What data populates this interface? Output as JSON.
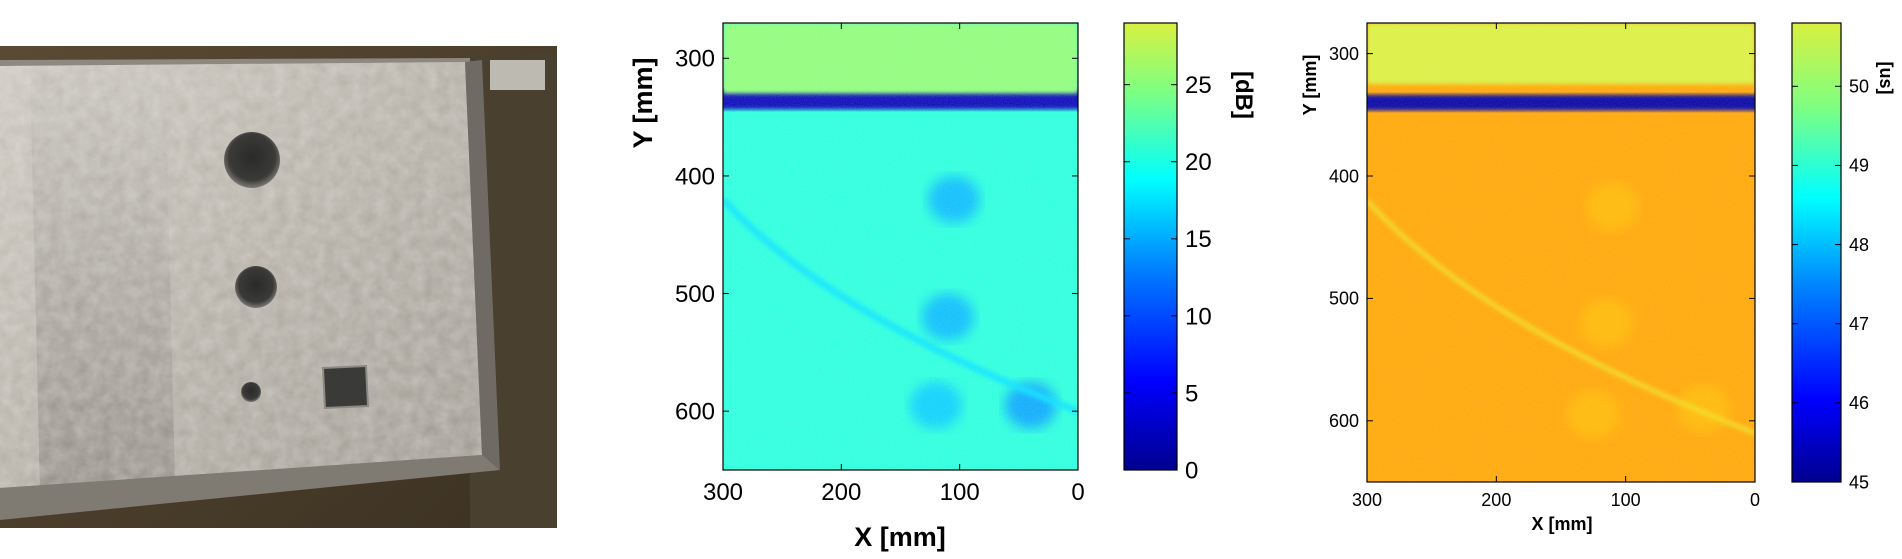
{
  "figure": {
    "panels": [
      "photograph",
      "amplitude-map",
      "time-of-flight-map"
    ]
  },
  "chart_data": [
    {
      "type": "heatmap",
      "title": "",
      "xlabel": "X [mm]",
      "ylabel": "Y [mm]",
      "xlim": [
        300,
        0
      ],
      "ylim": [
        650,
        270
      ],
      "x_reversed": true,
      "y_reversed": true,
      "x_ticks": [
        "300",
        "200",
        "100",
        "0"
      ],
      "x_tick_values": [
        300,
        200,
        100,
        0
      ],
      "y_ticks": [
        "300",
        "400",
        "500",
        "600"
      ],
      "y_tick_values": [
        300,
        400,
        500,
        600
      ],
      "colorbar": {
        "label": "[dB]",
        "range": [
          0,
          29
        ],
        "ticks": [
          "0",
          "5",
          "10",
          "15",
          "20",
          "25"
        ],
        "tick_values": [
          0,
          5,
          10,
          15,
          20,
          25
        ],
        "colormap": [
          "#00008f",
          "#0000ff",
          "#0080ff",
          "#00ffff",
          "#80ff80",
          "#d8f040"
        ]
      },
      "background_value": 19,
      "features": [
        {
          "kind": "band",
          "y_mm": 335,
          "value": 2
        },
        {
          "kind": "region",
          "y_range_mm": [
            270,
            330
          ],
          "value": 24
        },
        {
          "kind": "spot",
          "x_mm": 105,
          "y_mm": 420,
          "value": 14
        },
        {
          "kind": "spot",
          "x_mm": 110,
          "y_mm": 520,
          "value": 14
        },
        {
          "kind": "spot",
          "x_mm": 120,
          "y_mm": 595,
          "value": 15
        },
        {
          "kind": "spot",
          "x_mm": 40,
          "y_mm": 595,
          "value": 13
        },
        {
          "kind": "curve",
          "from_mm": [
            300,
            420
          ],
          "to_mm": [
            0,
            600
          ],
          "value": 16
        }
      ]
    },
    {
      "type": "heatmap",
      "title": "",
      "xlabel": "X [mm]",
      "ylabel": "Y [mm]",
      "xlim": [
        300,
        0
      ],
      "ylim": [
        650,
        275
      ],
      "x_reversed": true,
      "y_reversed": true,
      "x_ticks": [
        "300",
        "200",
        "100",
        "0"
      ],
      "x_tick_values": [
        300,
        200,
        100,
        0
      ],
      "y_ticks": [
        "300",
        "400",
        "500",
        "600"
      ],
      "y_tick_values": [
        300,
        400,
        500,
        600
      ],
      "colorbar": {
        "label": "[us]",
        "range": [
          45,
          50.8
        ],
        "ticks": [
          "45",
          "46",
          "47",
          "48",
          "49",
          "50"
        ],
        "tick_values": [
          45,
          46,
          47,
          48,
          49,
          50
        ],
        "colormap": [
          "#00008f",
          "#0000ff",
          "#0080ff",
          "#00ffff",
          "#80ff80",
          "#d8f040"
        ]
      },
      "background_value": 50.5,
      "features": [
        {
          "kind": "band",
          "y_mm": 340,
          "value": 45.2
        },
        {
          "kind": "region",
          "y_range_mm": [
            275,
            325
          ],
          "value": 49.8
        },
        {
          "kind": "spot",
          "x_mm": 110,
          "y_mm": 425,
          "value": 50.2
        },
        {
          "kind": "spot",
          "x_mm": 115,
          "y_mm": 520,
          "value": 50.2
        },
        {
          "kind": "spot",
          "x_mm": 125,
          "y_mm": 595,
          "value": 50.2
        },
        {
          "kind": "spot",
          "x_mm": 40,
          "y_mm": 590,
          "value": 50.2
        },
        {
          "kind": "curve",
          "from_mm": [
            300,
            420
          ],
          "to_mm": [
            0,
            610
          ],
          "value": 49.5
        }
      ]
    }
  ]
}
